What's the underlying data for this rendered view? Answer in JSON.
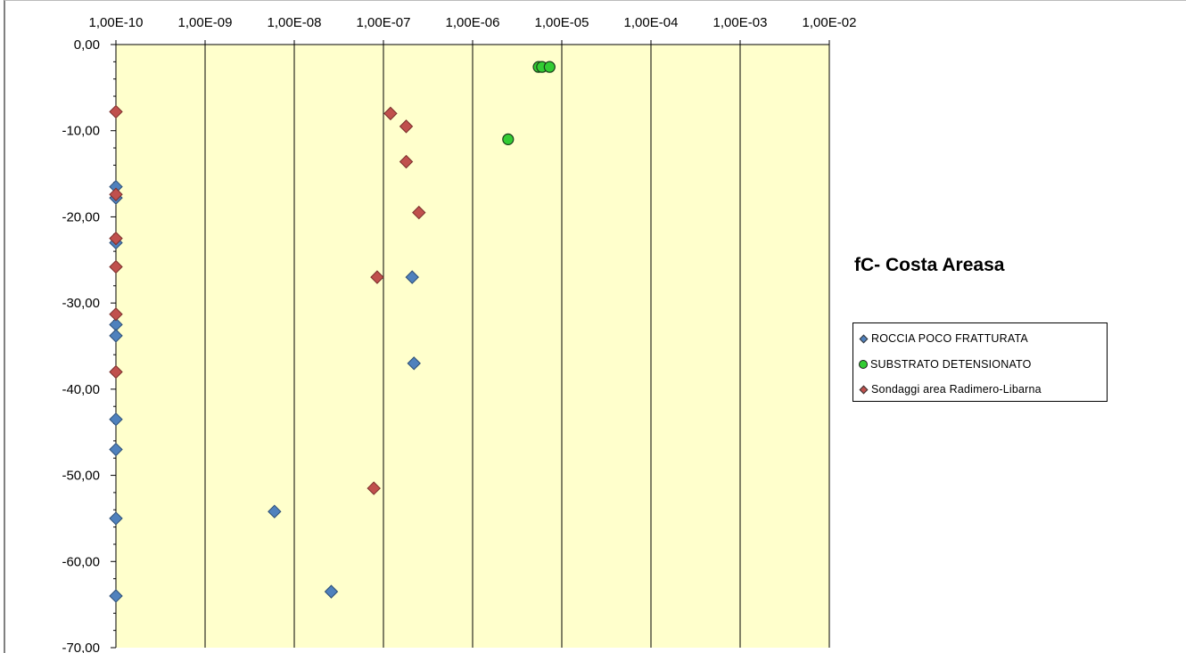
{
  "chart_data": {
    "type": "scatter",
    "title": "fC- Costa Areasa",
    "x_scale": "log",
    "x_position": "top",
    "x_tick_values": [
      1e-10,
      1e-09,
      1e-08,
      1e-07,
      1e-06,
      1e-05,
      0.0001,
      0.001,
      0.01
    ],
    "x_tick_labels": [
      "1,00E-10",
      "1,00E-09",
      "1,00E-08",
      "1,00E-07",
      "1,00E-06",
      "1,00E-05",
      "1,00E-04",
      "1,00E-03",
      "1,00E-02"
    ],
    "ylim": [
      -70,
      0
    ],
    "y_tick_values": [
      0,
      -10,
      -20,
      -30,
      -40,
      -50,
      -60,
      -70
    ],
    "y_tick_labels": [
      "0,00",
      "-10,00",
      "-20,00",
      "-30,00",
      "-40,00",
      "-50,00",
      "-60,00",
      "-70,00"
    ],
    "plot_background": "#ffffcc",
    "grid": "vertical",
    "legend_position": "right",
    "series": [
      {
        "name": "ROCCIA POCO FRATTURATA",
        "marker": "diamond",
        "color": "#4f81bd",
        "points": [
          [
            1e-10,
            -16.5
          ],
          [
            1e-10,
            -17.8
          ],
          [
            1e-10,
            -23.0
          ],
          [
            1e-10,
            -32.5
          ],
          [
            1e-10,
            -33.8
          ],
          [
            1e-10,
            -43.5
          ],
          [
            1e-10,
            -47.0
          ],
          [
            1e-10,
            -55.0
          ],
          [
            1e-10,
            -64.0
          ],
          [
            6e-09,
            -54.2
          ],
          [
            2.6e-08,
            -63.5
          ],
          [
            2.1e-07,
            -27.0
          ],
          [
            2.2e-07,
            -37.0
          ]
        ]
      },
      {
        "name": "SUBSTRATO DETENSIONATO",
        "marker": "circle",
        "color": "#33cc33",
        "points": [
          [
            2.5e-06,
            -11.0
          ],
          [
            5.5e-06,
            -2.6
          ],
          [
            6e-06,
            -2.6
          ],
          [
            7.3e-06,
            -2.6
          ]
        ]
      },
      {
        "name": "Sondaggi area Radimero-Libarna",
        "marker": "diamond",
        "color": "#c0504d",
        "points": [
          [
            1e-10,
            -7.8
          ],
          [
            1e-10,
            -17.4
          ],
          [
            1e-10,
            -22.5
          ],
          [
            1e-10,
            -25.8
          ],
          [
            1e-10,
            -31.3
          ],
          [
            1e-10,
            -38.0
          ],
          [
            1.2e-07,
            -8.0
          ],
          [
            1.8e-07,
            -9.5
          ],
          [
            1.8e-07,
            -13.6
          ],
          [
            2.5e-07,
            -19.5
          ],
          [
            8.5e-08,
            -27.0
          ],
          [
            7.8e-08,
            -51.5
          ]
        ]
      }
    ]
  }
}
